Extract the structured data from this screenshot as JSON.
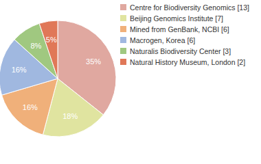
{
  "chart_data": {
    "type": "pie",
    "categories": [
      "Centre for Biodiversity Genomics [13]",
      "Beijing Genomics Institute [7]",
      "Mined from GenBank, NCBI [6]",
      "Macrogen, Korea [6]",
      "Naturalis Biodiversity Center [3]",
      "Natural History Museum, London [2]"
    ],
    "values": [
      35,
      18,
      16,
      16,
      8,
      5
    ],
    "value_labels": [
      "35%",
      "18%",
      "16%",
      "16%",
      "8%",
      "5%"
    ],
    "colors": [
      "#e0a8a0",
      "#e0e4a0",
      "#f0b07a",
      "#a0b8e0",
      "#a0c880",
      "#e07858"
    ],
    "data_labels": true,
    "legend": "top-right"
  }
}
